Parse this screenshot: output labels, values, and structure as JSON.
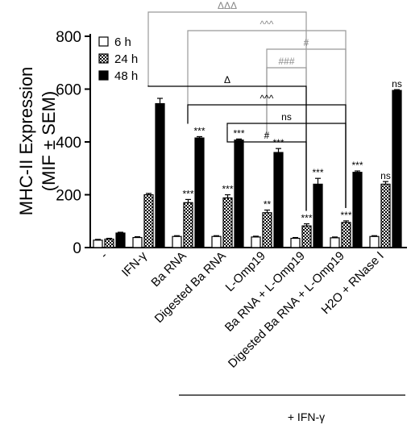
{
  "chart_data": {
    "type": "bar",
    "ylabel_line1": "MHC-II Expression",
    "ylabel_line2": "(MIF ± SEM)",
    "ylim": [
      0,
      800
    ],
    "yticks": [
      0,
      200,
      400,
      600,
      800
    ],
    "categories": [
      "-",
      "IFN-γ",
      "Ba RNA",
      "Digested Ba RNA",
      "L-Omp19",
      "Ba RNA + L-Omp19",
      "Digested Ba RNA + L-Omp19",
      "H2O + RNase I"
    ],
    "series": [
      {
        "name": "6 h",
        "pattern": "white",
        "values": [
          28,
          38,
          42,
          42,
          40,
          35,
          37,
          42
        ],
        "errors": [
          3,
          3,
          3,
          3,
          3,
          3,
          3,
          3
        ],
        "sig": [
          "",
          "",
          "",
          "",
          "",
          "",
          "",
          ""
        ]
      },
      {
        "name": "24 h",
        "pattern": "checker",
        "values": [
          32,
          200,
          170,
          188,
          132,
          82,
          95,
          240
        ],
        "errors": [
          3,
          5,
          12,
          12,
          10,
          8,
          6,
          10
        ],
        "sig": [
          "",
          "",
          "***",
          "***",
          "**",
          "***",
          "***",
          "ns"
        ]
      },
      {
        "name": "48 h",
        "pattern": "black",
        "values": [
          55,
          545,
          415,
          407,
          360,
          240,
          285,
          595
        ],
        "errors": [
          3,
          20,
          5,
          4,
          15,
          22,
          5,
          3
        ],
        "sig": [
          "",
          "",
          "***",
          "***",
          "***",
          "***",
          "***",
          "ns"
        ]
      }
    ],
    "comparisons": [
      {
        "label": "ΔΔΔ",
        "color": "gray",
        "from_group": 1,
        "to_group": 5,
        "level": 4
      },
      {
        "label": "^^^",
        "color": "gray",
        "from_group": 2,
        "to_group": 6,
        "level": 3
      },
      {
        "label": "#",
        "color": "gray",
        "from_group": 4,
        "to_group": 6,
        "level": 2
      },
      {
        "label": "###",
        "color": "gray",
        "from_group": 4,
        "to_group": 5,
        "level": 1
      },
      {
        "label": "Δ",
        "color": "black",
        "from_group": 1,
        "to_group": 5,
        "level": 3
      },
      {
        "label": "^^^",
        "color": "black",
        "from_group": 2,
        "to_group": 6,
        "level": 2
      },
      {
        "label": "ns",
        "color": "black",
        "from_group": 3,
        "to_group": 6,
        "level": 1
      },
      {
        "label": "#",
        "color": "black",
        "from_group": 3,
        "to_group": 5,
        "level": 0
      }
    ],
    "footer_label": "+ IFN-γ",
    "legend_position": "top-left"
  }
}
